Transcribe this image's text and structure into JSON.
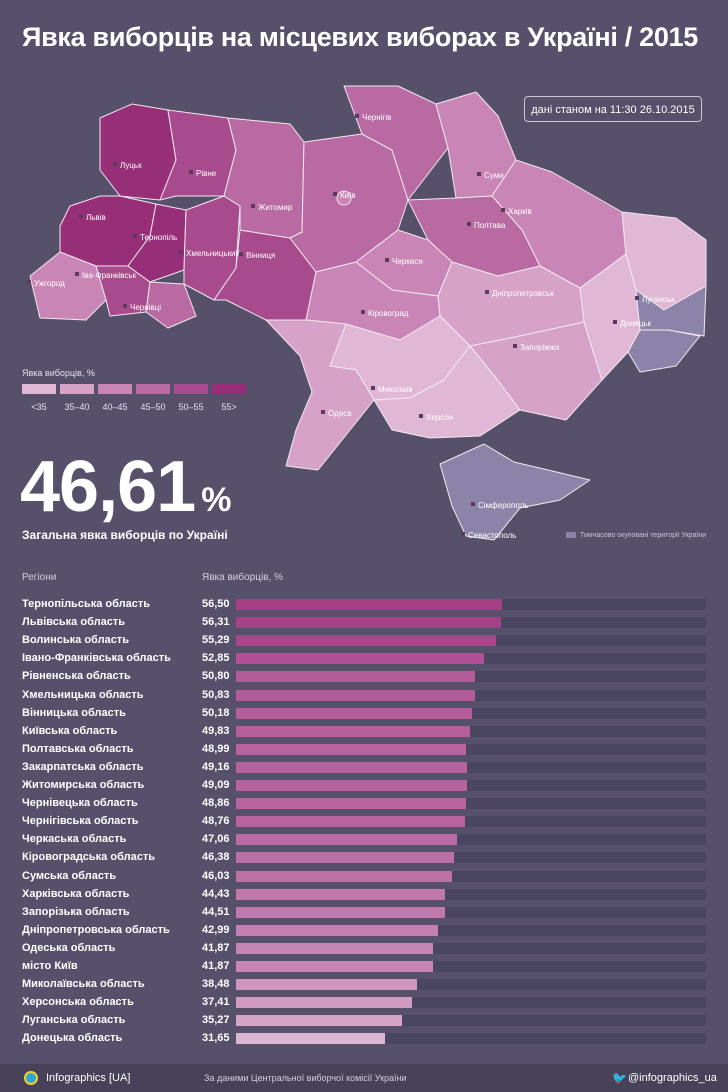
{
  "header": {
    "title": "Явка виборців на місцевих виборах в Україні / 2015",
    "timestamp": "дані станом на 11:30 26.10.2015"
  },
  "map": {
    "cities": [
      "Луцьк",
      "Рівне",
      "Житомир",
      "Київ",
      "Чернігів",
      "Суми",
      "Харків",
      "Полтава",
      "Черкаси",
      "Львів",
      "Тернопіль",
      "Хмельницький",
      "Вінниця",
      "Ужгород",
      "Іва-Франківськ",
      "Чернівці",
      "Кіровоград",
      "Дніпропетровськ",
      "Луганськ",
      "Донецьк",
      "Запоріжжя",
      "Миколаїв",
      "Одеса",
      "Херсон",
      "Сімферополь",
      "Севастополь"
    ],
    "occupied_label": "Тимчасово окуповані території України"
  },
  "legend": {
    "title": "Явка виборців, %",
    "items": [
      {
        "label": "<35",
        "color": "#e0b8d6"
      },
      {
        "label": "35–40",
        "color": "#d6a2c8"
      },
      {
        "label": "40–45",
        "color": "#c985b6"
      },
      {
        "label": "45–50",
        "color": "#b96aa2"
      },
      {
        "label": "50–55",
        "color": "#a84b8c"
      },
      {
        "label": "55>",
        "color": "#972f78"
      }
    ]
  },
  "summary": {
    "value": "46,61",
    "unit": "%",
    "caption": "Загальна явка виборців по Україні"
  },
  "chart_data": {
    "type": "bar",
    "orientation": "horizontal",
    "column_headers": [
      "Регіони",
      "Явка виборців, %"
    ],
    "categories": [
      "Тернопільська область",
      "Львівська область",
      "Волинська область",
      "Івано-Франківська область",
      "Рівненська область",
      "Хмельницька область",
      "Вінницька область",
      "Київська область",
      "Полтавська область",
      "Закарпатська область",
      "Житомирська область",
      "Чернівецька область",
      "Чернігівська область",
      "Черкаська область",
      "Кіровоградська область",
      "Сумська область",
      "Харківська область",
      "Запорізька область",
      "Дніпропетровська область",
      "Одеська область",
      "місто Київ",
      "Миколаївська область",
      "Херсонська область",
      "Луганська область",
      "Донецька область"
    ],
    "values": [
      56.5,
      56.31,
      55.29,
      52.85,
      50.8,
      50.83,
      50.18,
      49.83,
      48.99,
      49.16,
      49.09,
      48.86,
      48.76,
      47.06,
      46.38,
      46.03,
      44.43,
      44.51,
      42.99,
      41.87,
      41.87,
      38.48,
      37.41,
      35.27,
      31.65
    ],
    "labels": [
      "56,50",
      "56,31",
      "55,29",
      "52,85",
      "50,80",
      "50,83",
      "50,18",
      "49,83",
      "48,99",
      "49,16",
      "49,09",
      "48,86",
      "48,76",
      "47,06",
      "46,38",
      "46,03",
      "44,43",
      "44,51",
      "42,99",
      "41,87",
      "41,87",
      "38,48",
      "37,41",
      "35,27",
      "31,65"
    ],
    "xlim": [
      0,
      100
    ],
    "bar_color_high": "#a63f86",
    "bar_color_low": "#ddb6d4",
    "track_color": "#4a4560"
  },
  "footer": {
    "brand": "Infographics [UA]",
    "source": "За даними Центральної виборчої комісії України",
    "handle": "@infographics_ua"
  }
}
